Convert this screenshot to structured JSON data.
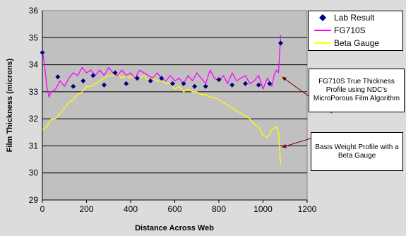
{
  "chart_data": {
    "type": "line",
    "title": "",
    "xlabel": "Distance Across Web",
    "ylabel": "Film Thickness (microns)",
    "xlim": [
      0,
      1200
    ],
    "ylim": [
      29,
      36
    ],
    "xticks": [
      0,
      200,
      400,
      600,
      800,
      1000,
      1200
    ],
    "yticks": [
      29,
      30,
      31,
      32,
      33,
      34,
      35,
      36
    ],
    "grid": "horizontal",
    "legend_position": "right",
    "series": [
      {
        "name": "Lab Result",
        "kind": "scatter",
        "marker": "diamond",
        "color": "#000080",
        "x": [
          0,
          70,
          140,
          185,
          230,
          280,
          330,
          380,
          430,
          490,
          540,
          590,
          640,
          690,
          740,
          800,
          860,
          920,
          980,
          1030,
          1080
        ],
        "y": [
          34.45,
          33.55,
          33.2,
          33.4,
          33.6,
          33.25,
          33.7,
          33.3,
          33.5,
          33.4,
          33.5,
          33.3,
          33.3,
          33.2,
          33.2,
          33.45,
          33.25,
          33.3,
          33.25,
          33.3,
          34.8
        ]
      },
      {
        "name": "FG710S",
        "kind": "line",
        "color": "#ff00ff",
        "x": [
          0,
          10,
          20,
          30,
          40,
          60,
          80,
          100,
          120,
          140,
          160,
          180,
          200,
          220,
          240,
          260,
          280,
          300,
          320,
          340,
          360,
          380,
          400,
          420,
          440,
          460,
          480,
          500,
          520,
          540,
          560,
          580,
          600,
          620,
          640,
          660,
          680,
          700,
          720,
          740,
          760,
          780,
          800,
          820,
          840,
          860,
          880,
          900,
          920,
          940,
          960,
          980,
          1000,
          1020,
          1040,
          1050,
          1060,
          1070,
          1080
        ],
        "y": [
          34.5,
          34.0,
          33.2,
          32.8,
          33.0,
          33.1,
          33.4,
          33.2,
          33.5,
          33.7,
          33.6,
          33.9,
          33.7,
          33.8,
          33.6,
          33.8,
          33.6,
          33.9,
          33.7,
          33.6,
          33.8,
          33.6,
          33.7,
          33.5,
          33.8,
          33.7,
          33.6,
          33.5,
          33.7,
          33.5,
          33.4,
          33.6,
          33.4,
          33.5,
          33.3,
          33.6,
          33.4,
          33.7,
          33.5,
          33.3,
          33.8,
          33.5,
          33.4,
          33.6,
          33.3,
          33.7,
          33.4,
          33.5,
          33.6,
          33.3,
          33.4,
          33.6,
          33.1,
          33.5,
          33.2,
          33.6,
          33.8,
          33.7,
          35.1
        ]
      },
      {
        "name": "Beta Gauge",
        "kind": "line",
        "color": "#ffff00",
        "x": [
          0,
          20,
          40,
          60,
          80,
          100,
          120,
          140,
          160,
          180,
          200,
          220,
          240,
          260,
          280,
          300,
          320,
          340,
          360,
          380,
          400,
          420,
          440,
          460,
          480,
          500,
          520,
          540,
          560,
          580,
          600,
          620,
          640,
          660,
          680,
          700,
          720,
          740,
          760,
          780,
          800,
          820,
          840,
          860,
          880,
          900,
          920,
          940,
          960,
          980,
          1000,
          1020,
          1040,
          1060,
          1070,
          1080
        ],
        "y": [
          31.6,
          31.7,
          32.0,
          32.0,
          32.2,
          32.4,
          32.6,
          32.7,
          32.9,
          33.0,
          33.2,
          33.2,
          33.3,
          33.4,
          33.5,
          33.6,
          33.6,
          33.7,
          33.5,
          33.6,
          33.5,
          33.6,
          33.5,
          33.6,
          33.4,
          33.5,
          33.4,
          33.4,
          33.3,
          33.3,
          33.1,
          33.2,
          33.0,
          33.1,
          33.0,
          33.0,
          32.9,
          32.9,
          32.8,
          32.8,
          32.7,
          32.6,
          32.5,
          32.4,
          32.3,
          32.2,
          32.1,
          32.0,
          31.8,
          31.7,
          31.4,
          31.3,
          31.6,
          31.7,
          31.5,
          30.3
        ]
      }
    ],
    "annotations": [
      {
        "text": "FG710S True Thickness Profile  using NDC's MicroPorous Film Algorithm",
        "target_series": "FG710S"
      },
      {
        "text": "Basis Weight Profile with a Beta Gauge",
        "target_series": "Beta Gauge"
      }
    ]
  }
}
